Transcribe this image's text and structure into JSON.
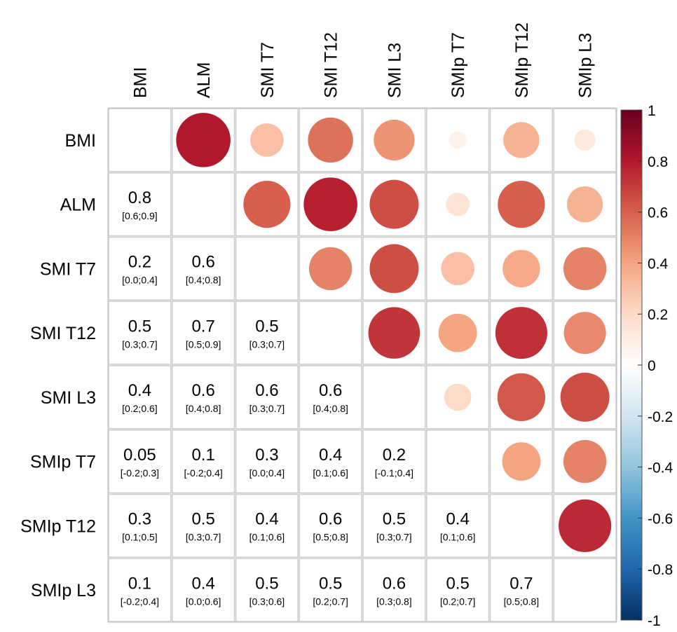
{
  "chart_data": {
    "type": "heatmap",
    "variables": [
      "BMI",
      "ALM",
      "SMI T7",
      "SMI T12",
      "SMI L3",
      "SMIp T7",
      "SMIp T12",
      "SMIp L3"
    ],
    "color_scale": {
      "min": -1,
      "max": 1,
      "ticks": [
        "1",
        "0.8",
        "0.6",
        "0.4",
        "0.2",
        "0",
        "-0.2",
        "-0.4",
        "-0.6",
        "-0.8",
        "-1"
      ],
      "colors": [
        "#67001f",
        "#b2182b",
        "#d6604d",
        "#f4a582",
        "#fddbc7",
        "#ffffff",
        "#d1e5f0",
        "#92c5de",
        "#4393c3",
        "#2166ac",
        "#053061"
      ]
    },
    "lower": [
      [
        null,
        null,
        null,
        null,
        null,
        null,
        null,
        null
      ],
      [
        {
          "v": "0.8",
          "ci": "[0.6;0.9]"
        },
        null,
        null,
        null,
        null,
        null,
        null,
        null
      ],
      [
        {
          "v": "0.2",
          "ci": "[0.0;0.4]"
        },
        {
          "v": "0.6",
          "ci": "[0.4;0.8]"
        },
        null,
        null,
        null,
        null,
        null,
        null
      ],
      [
        {
          "v": "0.5",
          "ci": "[0.3;0.7]"
        },
        {
          "v": "0.7",
          "ci": "[0.5;0.9]"
        },
        {
          "v": "0.5",
          "ci": "[0.3;0.7]"
        },
        null,
        null,
        null,
        null,
        null
      ],
      [
        {
          "v": "0.4",
          "ci": "[0.2;0.6]"
        },
        {
          "v": "0.6",
          "ci": "[0.4;0.8]"
        },
        {
          "v": "0.6",
          "ci": "[0.3;0.7]"
        },
        {
          "v": "0.6",
          "ci": "[0.4;0.8]"
        },
        null,
        null,
        null,
        null
      ],
      [
        {
          "v": "0.05",
          "ci": "[-0.2;0.3]"
        },
        {
          "v": "0.1",
          "ci": "[-0.2;0.4]"
        },
        {
          "v": "0.3",
          "ci": "[0.0;0.4]"
        },
        {
          "v": "0.4",
          "ci": "[0.1;0.6]"
        },
        {
          "v": "0.2",
          "ci": "[-0.1;0.4]"
        },
        null,
        null,
        null
      ],
      [
        {
          "v": "0.3",
          "ci": "[0.1;0.5]"
        },
        {
          "v": "0.5",
          "ci": "[0.3;0.7]"
        },
        {
          "v": "0.4",
          "ci": "[0.1;0.6]"
        },
        {
          "v": "0.6",
          "ci": "[0.5;0.8]"
        },
        {
          "v": "0.5",
          "ci": "[0.3;0.7]"
        },
        {
          "v": "0.4",
          "ci": "[0.1;0.6]"
        },
        null,
        null
      ],
      [
        {
          "v": "0.1",
          "ci": "[-0.2;0.4]"
        },
        {
          "v": "0.4",
          "ci": "[0.0;0.6]"
        },
        {
          "v": "0.5",
          "ci": "[0.3;0.6]"
        },
        {
          "v": "0.5",
          "ci": "[0.2;0.7]"
        },
        {
          "v": "0.6",
          "ci": "[0.3;0.8]"
        },
        {
          "v": "0.5",
          "ci": "[0.2;0.7]"
        },
        {
          "v": "0.7",
          "ci": "[0.5;0.8]"
        },
        null
      ]
    ],
    "upper_circles": [
      [
        null,
        0.8,
        0.3,
        0.55,
        0.45,
        0.08,
        0.35,
        0.12
      ],
      [
        null,
        null,
        0.6,
        0.78,
        0.65,
        0.15,
        0.6,
        0.35
      ],
      [
        null,
        null,
        null,
        0.5,
        0.65,
        0.3,
        0.38,
        0.5
      ],
      [
        null,
        null,
        null,
        null,
        0.72,
        0.4,
        0.73,
        0.48
      ],
      [
        null,
        null,
        null,
        null,
        null,
        0.2,
        0.62,
        0.65
      ],
      [
        null,
        null,
        null,
        null,
        null,
        null,
        0.4,
        0.5
      ],
      [
        null,
        null,
        null,
        null,
        null,
        null,
        null,
        0.75
      ],
      [
        null,
        null,
        null,
        null,
        null,
        null,
        null,
        null
      ]
    ]
  }
}
